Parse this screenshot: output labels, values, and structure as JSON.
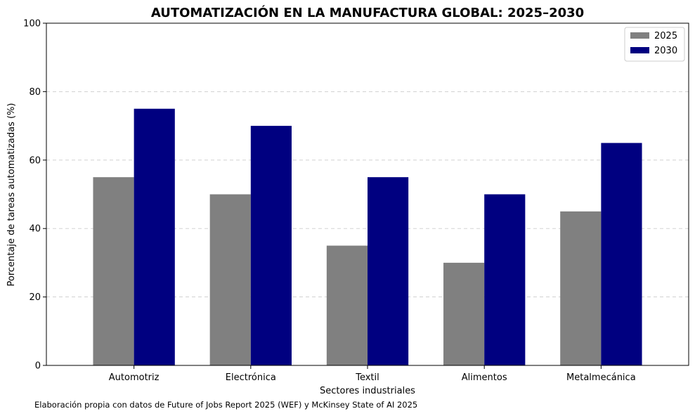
{
  "chart_data": {
    "type": "bar",
    "title": "AUTOMATIZACIÓN EN LA MANUFACTURA GLOBAL: 2025–2030",
    "xlabel": "Sectores industriales",
    "ylabel": "Porcentaje de tareas automatizadas (%)",
    "categories": [
      "Automotriz",
      "Electrónica",
      "Textil",
      "Alimentos",
      "Metalmecánica"
    ],
    "series": [
      {
        "name": "2025",
        "color": "#808080",
        "values": [
          55,
          50,
          35,
          30,
          45
        ]
      },
      {
        "name": "2030",
        "color": "#000080",
        "values": [
          75,
          70,
          55,
          50,
          65
        ]
      }
    ],
    "ylim": [
      0,
      100
    ],
    "yticks": [
      0,
      20,
      40,
      60,
      80,
      100
    ],
    "grid": "horizontal-dashed",
    "legend_position": "top-right",
    "source_note": "Elaboración propia con datos de Future of Jobs Report 2025 (WEF) y McKinsey State of AI 2025"
  }
}
